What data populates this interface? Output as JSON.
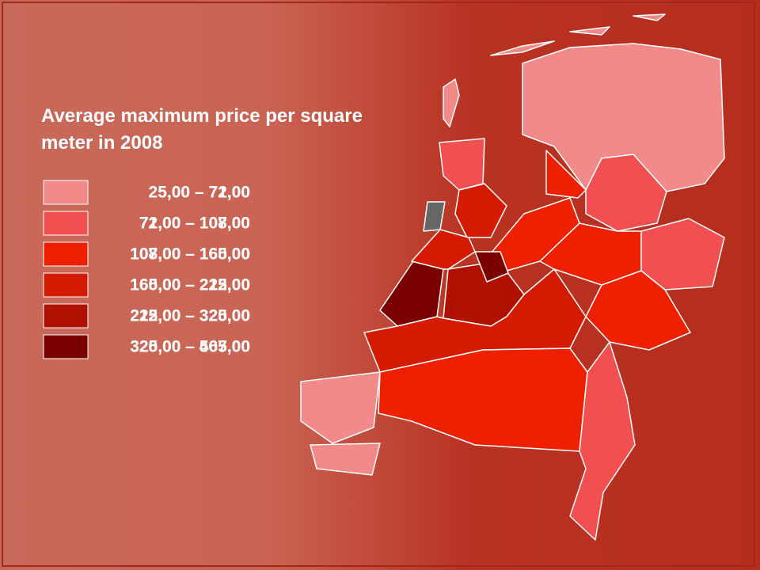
{
  "title": "Average maximum price per square meter in 2008",
  "legend": [
    {
      "color": "#f28a8a",
      "labels": [
        "25,00 – 72,00",
        "5,00 – 71,00"
      ]
    },
    {
      "color": "#f25050",
      "labels": [
        "72,00 – 107,00",
        "71,00 – 108,00"
      ]
    },
    {
      "color": "#ee2000",
      "labels": [
        "107,00 – 160,00",
        "108,00 – 165,00"
      ]
    },
    {
      "color": "#d41a00",
      "labels": [
        "160,00 – 215,00",
        "165,00 – 222,00"
      ]
    },
    {
      "color": "#b01000",
      "labels": [
        "215,00 – 320,00",
        "222,00 – 325,00"
      ]
    },
    {
      "color": "#7a0000",
      "labels": [
        "320,00 – 467,00",
        "325,00 – 505,00"
      ]
    }
  ]
}
